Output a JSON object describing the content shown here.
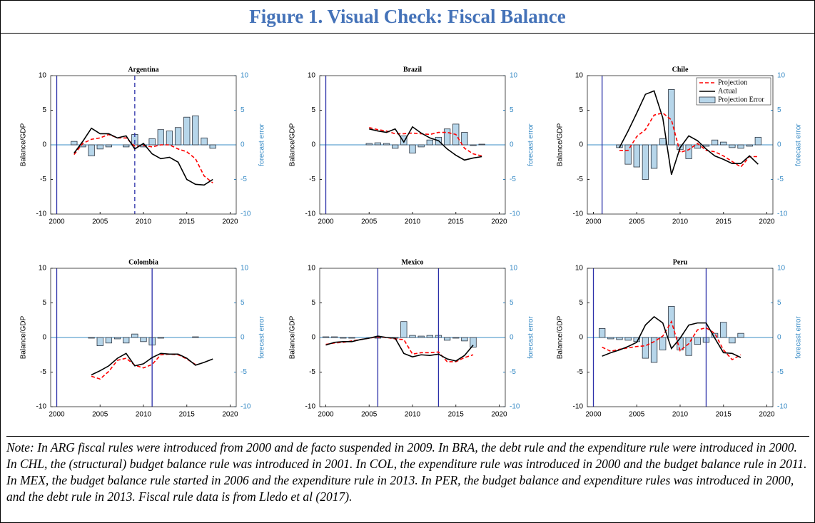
{
  "title": "Figure 1. Visual Check: Fiscal Balance",
  "note": "Note: In ARG fiscal rules were introduced from 2000 and de facto suspended in 2009. In BRA, the debt rule and the expenditure rule were introduced in 2000. In CHL, the (structural) budget balance rule was introduced in 2001. In COL, the expenditure rule was introduced in 2000 and the budget balance rule in 2011. In MEX, the budget balance rule started in 2006 and the expenditure rule in 2013. In PER, the budget balance and expenditure rules was introduced in 2000, and the debt rule in 2013. Fiscal rule data is from Lledo et al (2017).",
  "chart_data": [
    {
      "type": "combo",
      "title": "Argentina",
      "ylabel": "Balance/GDP",
      "y2label": "forecast error",
      "xlim": [
        1999.3,
        2020.7
      ],
      "xticks": [
        2000,
        2005,
        2010,
        2015,
        2020
      ],
      "ylim": [
        -10,
        10
      ],
      "yticks": [
        -10,
        -5,
        0,
        5,
        10
      ],
      "y2lim": [
        -10,
        10
      ],
      "y2ticks": [
        -10,
        -5,
        0,
        5,
        10
      ],
      "vlines": [
        {
          "x": 2000,
          "style": "solid"
        },
        {
          "x": 2009,
          "style": "dashed"
        }
      ],
      "x": [
        2002,
        2003,
        2004,
        2005,
        2006,
        2007,
        2008,
        2009,
        2010,
        2011,
        2012,
        2013,
        2014,
        2015,
        2016,
        2017,
        2018
      ],
      "series": [
        {
          "kind": "bar",
          "axis": "y2",
          "color": "#b7d6ea",
          "values": [
            0.5,
            -0.3,
            -1.6,
            -0.6,
            -0.3,
            0,
            -0.3,
            1.5,
            -0.3,
            0.9,
            2.2,
            2.0,
            2.5,
            4.0,
            4.2,
            1.0,
            -0.5
          ]
        },
        {
          "kind": "line",
          "style": "dashed",
          "color": "#ff0000",
          "values": [
            -1.4,
            0.2,
            0.8,
            1.0,
            1.5,
            1.0,
            1.0,
            -0.2,
            -0.1,
            -0.3,
            0.0,
            0.0,
            -0.6,
            -1.0,
            -2.0,
            -4.5,
            -5.5
          ]
        },
        {
          "kind": "line",
          "style": "solid",
          "color": "#000000",
          "values": [
            -1.2,
            0.5,
            2.4,
            1.6,
            1.6,
            1.0,
            1.3,
            -0.6,
            0.2,
            -1.3,
            -2.0,
            -1.8,
            -2.5,
            -5.0,
            -5.7,
            -5.8,
            -5.0
          ]
        }
      ]
    },
    {
      "type": "combo",
      "title": "Brazil",
      "ylabel": "Balance/GDP",
      "y2label": "forecast error",
      "xlim": [
        1999.3,
        2020.7
      ],
      "xticks": [
        2000,
        2005,
        2010,
        2015,
        2020
      ],
      "ylim": [
        -10,
        10
      ],
      "yticks": [
        -10,
        -5,
        0,
        5,
        10
      ],
      "y2lim": [
        -10,
        10
      ],
      "y2ticks": [
        -10,
        -5,
        0,
        5,
        10
      ],
      "vlines": [
        {
          "x": 2000,
          "style": "solid"
        }
      ],
      "x": [
        2005,
        2006,
        2007,
        2008,
        2009,
        2010,
        2011,
        2012,
        2013,
        2014,
        2015,
        2016,
        2017,
        2018
      ],
      "series": [
        {
          "kind": "bar",
          "axis": "y2",
          "color": "#b7d6ea",
          "values": [
            0.2,
            0.3,
            0.2,
            -0.5,
            1.3,
            -1.2,
            -0.3,
            0.7,
            1.1,
            2.3,
            3.0,
            1.8,
            -0.1,
            0.1
          ]
        },
        {
          "kind": "line",
          "style": "dashed",
          "color": "#ff0000",
          "values": [
            2.5,
            2.2,
            2.0,
            1.6,
            1.6,
            1.7,
            1.6,
            1.5,
            1.8,
            1.8,
            1.5,
            -0.5,
            -1.3,
            -1.6
          ]
        },
        {
          "kind": "line",
          "style": "solid",
          "color": "#000000",
          "values": [
            2.3,
            2.0,
            1.8,
            2.3,
            0.4,
            2.6,
            1.7,
            1.0,
            0.6,
            -0.6,
            -1.5,
            -2.2,
            -1.9,
            -1.7
          ]
        }
      ]
    },
    {
      "type": "combo",
      "title": "Chile",
      "ylabel": "Balance/GDP",
      "y2label": "forecast error",
      "legend": "upper right",
      "xlim": [
        1999.3,
        2020.7
      ],
      "xticks": [
        2000,
        2005,
        2010,
        2015,
        2020
      ],
      "ylim": [
        -10,
        10
      ],
      "yticks": [
        -10,
        -5,
        0,
        5,
        10
      ],
      "y2lim": [
        -10,
        10
      ],
      "y2ticks": [
        -10,
        -5,
        0,
        5,
        10
      ],
      "vlines": [
        {
          "x": 2001,
          "style": "solid"
        }
      ],
      "x": [
        2003,
        2004,
        2005,
        2006,
        2007,
        2008,
        2009,
        2010,
        2011,
        2012,
        2013,
        2014,
        2015,
        2016,
        2017,
        2018,
        2019
      ],
      "series": [
        {
          "name": "Projection Error",
          "kind": "bar",
          "axis": "y2",
          "color": "#b7d6ea",
          "values": [
            -0.4,
            -2.8,
            -3.2,
            -5.0,
            -3.4,
            0.9,
            8.0,
            -0.7,
            -2.0,
            -0.5,
            -0.2,
            0.7,
            0.4,
            -0.4,
            -0.5,
            -0.2,
            1.1
          ]
        },
        {
          "name": "Projection",
          "kind": "line",
          "style": "dashed",
          "color": "#ff0000",
          "values": [
            -0.8,
            -0.8,
            1.2,
            2.2,
            4.3,
            4.6,
            3.6,
            -1.1,
            -0.7,
            0.2,
            -0.8,
            -1.0,
            -1.6,
            -2.4,
            -3.2,
            -1.7,
            -1.7
          ]
        },
        {
          "name": "Actual",
          "kind": "line",
          "style": "solid",
          "color": "#000000",
          "values": [
            -0.4,
            2.0,
            4.6,
            7.3,
            7.8,
            3.9,
            -4.3,
            -0.4,
            1.3,
            0.6,
            -0.6,
            -1.6,
            -2.1,
            -2.7,
            -2.7,
            -1.6,
            -2.8
          ]
        }
      ]
    },
    {
      "type": "combo",
      "title": "Colombia",
      "ylabel": "Balance/GDP",
      "y2label": "forecast error",
      "xlim": [
        1999.3,
        2020.7
      ],
      "xticks": [
        2000,
        2005,
        2010,
        2015,
        2020
      ],
      "ylim": [
        -10,
        10
      ],
      "yticks": [
        -10,
        -5,
        0,
        5,
        10
      ],
      "y2lim": [
        -10,
        10
      ],
      "y2ticks": [
        -10,
        -5,
        0,
        5,
        10
      ],
      "vlines": [
        {
          "x": 2000,
          "style": "solid"
        },
        {
          "x": 2011,
          "style": "solid"
        }
      ],
      "x": [
        2004,
        2005,
        2006,
        2007,
        2008,
        2009,
        2010,
        2011,
        2012,
        2013,
        2014,
        2015,
        2016,
        2017,
        2018
      ],
      "series": [
        {
          "kind": "bar",
          "axis": "y2",
          "color": "#b7d6ea",
          "values": [
            -0.1,
            -1.2,
            -0.8,
            -0.2,
            -0.8,
            0.5,
            -0.6,
            -1.1,
            -0.1,
            0.0,
            0.0,
            0.0,
            0.1,
            0.0,
            0.0
          ]
        },
        {
          "kind": "line",
          "style": "dashed",
          "color": "#ff0000",
          "values": [
            -5.6,
            -6.0,
            -4.9,
            -3.3,
            -3.0,
            -4.0,
            -4.4,
            -3.9,
            -2.5,
            -2.4,
            -2.5,
            -3.1,
            -3.9,
            null,
            null
          ]
        },
        {
          "kind": "line",
          "style": "solid",
          "color": "#000000",
          "values": [
            -5.4,
            -4.8,
            -4.1,
            -3.0,
            -2.3,
            -4.1,
            -3.8,
            -2.9,
            -2.3,
            -2.4,
            -2.4,
            -3.0,
            -4.0,
            -3.6,
            -3.1
          ]
        }
      ]
    },
    {
      "type": "combo",
      "title": "Mexico",
      "ylabel": "Balance/GDP",
      "y2label": "forecast error",
      "xlim": [
        1999.3,
        2020.7
      ],
      "xticks": [
        2000,
        2005,
        2010,
        2015,
        2020
      ],
      "ylim": [
        -10,
        10
      ],
      "yticks": [
        -10,
        -5,
        0,
        5,
        10
      ],
      "y2lim": [
        -10,
        10
      ],
      "y2ticks": [
        -10,
        -5,
        0,
        5,
        10
      ],
      "vlines": [
        {
          "x": 2006,
          "style": "solid"
        },
        {
          "x": 2013,
          "style": "solid"
        }
      ],
      "x": [
        2000,
        2001,
        2002,
        2003,
        2004,
        2005,
        2006,
        2007,
        2008,
        2009,
        2010,
        2011,
        2012,
        2013,
        2014,
        2015,
        2016,
        2017
      ],
      "series": [
        {
          "kind": "bar",
          "axis": "y2",
          "color": "#b7d6ea",
          "values": [
            0.1,
            0.1,
            -0.1,
            -0.1,
            0.0,
            0.0,
            -0.1,
            0.0,
            -0.1,
            2.3,
            0.3,
            0.2,
            0.3,
            0.3,
            -0.4,
            -0.1,
            -0.5,
            -1.4
          ]
        },
        {
          "kind": "line",
          "style": "dashed",
          "color": "#ff0000",
          "values": [
            -1.0,
            -0.8,
            -0.7,
            -0.5,
            -0.3,
            -0.1,
            0.1,
            0.0,
            -0.2,
            -0.3,
            -2.4,
            -2.2,
            -2.2,
            -2.1,
            -3.5,
            -3.5,
            -2.9,
            -2.5
          ]
        },
        {
          "kind": "line",
          "style": "solid",
          "color": "#000000",
          "values": [
            -1.1,
            -0.7,
            -0.6,
            -0.6,
            -0.3,
            -0.1,
            0.2,
            0.0,
            -0.1,
            -2.3,
            -2.8,
            -2.5,
            -2.6,
            -2.4,
            -3.1,
            -3.4,
            -2.6,
            -1.1
          ]
        }
      ]
    },
    {
      "type": "combo",
      "title": "Peru",
      "ylabel": "Balance/GDP",
      "y2label": "forecast error",
      "xlim": [
        1999.3,
        2020.7
      ],
      "xticks": [
        2000,
        2005,
        2010,
        2015,
        2020
      ],
      "ylim": [
        -10,
        10
      ],
      "yticks": [
        -10,
        -5,
        0,
        5,
        10
      ],
      "y2lim": [
        -10,
        10
      ],
      "y2ticks": [
        -10,
        -5,
        0,
        5,
        10
      ],
      "vlines": [
        {
          "x": 2000,
          "style": "solid"
        },
        {
          "x": 2013,
          "style": "solid"
        }
      ],
      "x": [
        2001,
        2002,
        2003,
        2004,
        2005,
        2006,
        2007,
        2008,
        2009,
        2010,
        2011,
        2012,
        2013,
        2014,
        2015,
        2016,
        2017
      ],
      "series": [
        {
          "kind": "bar",
          "axis": "y2",
          "color": "#b7d6ea",
          "values": [
            1.3,
            -0.2,
            -0.3,
            -0.4,
            -0.6,
            -3.0,
            -3.6,
            -1.8,
            4.5,
            -1.8,
            -2.6,
            -1.0,
            -0.7,
            0.6,
            2.2,
            -0.8,
            0.6
          ]
        },
        {
          "kind": "line",
          "style": "dashed",
          "color": "#ff0000",
          "values": [
            -1.4,
            -2.0,
            -1.7,
            -1.5,
            -1.3,
            -1.2,
            -0.6,
            0.2,
            2.3,
            -1.9,
            -0.9,
            1.1,
            1.4,
            0.6,
            -1.8,
            -3.2,
            -2.5
          ]
        },
        {
          "kind": "line",
          "style": "solid",
          "color": "#000000",
          "values": [
            -2.7,
            -2.2,
            -1.8,
            -1.3,
            -0.7,
            1.8,
            3.0,
            2.1,
            -1.6,
            -0.1,
            1.8,
            2.1,
            2.1,
            -0.1,
            -2.2,
            -2.3,
            -2.9
          ]
        }
      ]
    }
  ]
}
